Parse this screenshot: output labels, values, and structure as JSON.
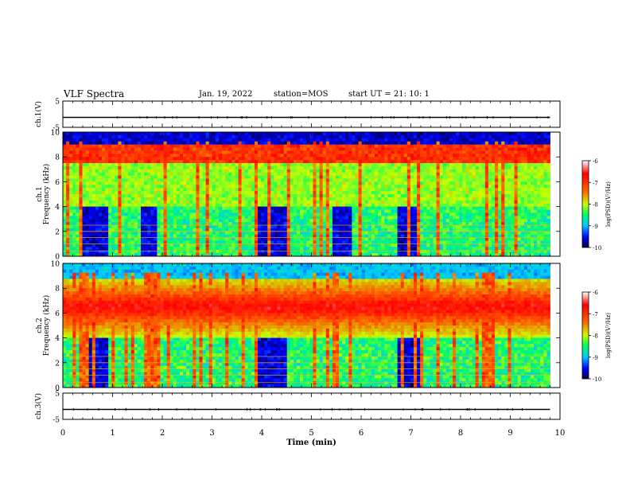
{
  "header": {
    "title": "VLF Spectra",
    "date": "Jan. 19, 2022",
    "station": "station=MOS",
    "start": "start UT =  21: 10: 1"
  },
  "colors": {
    "spectrogram_map": [
      "#000040",
      "#0000ff",
      "#00c8ff",
      "#00ff64",
      "#c8ff00",
      "#ff0000",
      "#ffffff"
    ]
  },
  "chart_data": [
    {
      "type": "line",
      "panel": "ch1-waveform",
      "ylabel": "ch.1(V)",
      "yticks": [
        "5",
        "-5"
      ],
      "ylim": [
        -5,
        5
      ],
      "xlim": [
        0,
        10
      ],
      "series": [
        {
          "x": [
            0,
            9.8
          ],
          "y": [
            -1.2,
            -1.2
          ]
        }
      ]
    },
    {
      "type": "heatmap",
      "panel": "ch1-spectrogram",
      "ylabel": "ch.1 Frequency (kHz)",
      "ylim": [
        0,
        10
      ],
      "yticks": [
        "0",
        "2",
        "4",
        "6",
        "8",
        "10"
      ],
      "xlim": [
        0,
        10
      ],
      "data_end_min": 9.8,
      "colorbar": {
        "label": "log(PSD)(V²/Hz)",
        "range": [
          -10,
          -6
        ],
        "ticks": [
          "-6",
          "-7",
          "-8",
          "-9",
          "-10"
        ]
      },
      "band_top_khz": 9.0,
      "quiet_intervals_min": [
        [
          0.4,
          0.9
        ],
        [
          1.6,
          1.9
        ],
        [
          3.9,
          4.5
        ],
        [
          5.4,
          5.8
        ],
        [
          6.7,
          7.2
        ]
      ]
    },
    {
      "type": "heatmap",
      "panel": "ch2-spectrogram",
      "ylabel": "ch.2 Frequency (kHz)",
      "ylim": [
        0,
        10
      ],
      "yticks": [
        "0",
        "2",
        "4",
        "6",
        "8",
        "10"
      ],
      "xlim": [
        0,
        10
      ],
      "data_end_min": 9.8,
      "colorbar": {
        "label": "log(PSD)(V²/Hz)",
        "range": [
          -10,
          -6
        ],
        "ticks": [
          "-6",
          "-7",
          "-8",
          "-9",
          "-10"
        ]
      },
      "peak_band_khz": [
        5,
        8
      ],
      "quiet_intervals_min": [
        [
          0.4,
          0.9
        ],
        [
          3.9,
          4.5
        ],
        [
          6.7,
          7.2
        ]
      ]
    },
    {
      "type": "line",
      "panel": "ch3-waveform",
      "ylabel": "ch.3(V)",
      "yticks": [
        "5",
        "-5"
      ],
      "ylim": [
        -5,
        5
      ],
      "xlim": [
        0,
        10
      ],
      "xlabel": "Time (min)",
      "xticks": [
        "0",
        "1",
        "2",
        "3",
        "4",
        "5",
        "6",
        "7",
        "8",
        "9",
        "10"
      ],
      "series": [
        {
          "x": [
            0,
            9.8
          ],
          "y": [
            -1.2,
            -1.2
          ]
        }
      ]
    }
  ]
}
